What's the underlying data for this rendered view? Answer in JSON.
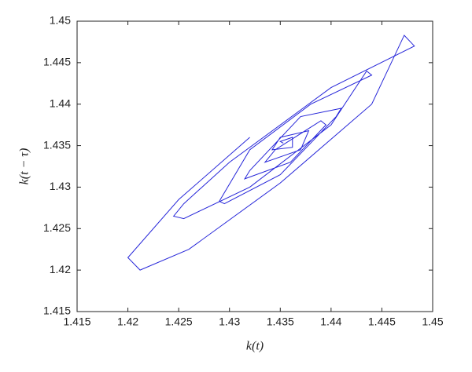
{
  "chart_data": {
    "type": "line",
    "x_label": "k(t)",
    "y_label": "k(t − τ)",
    "x": [
      1.432,
      1.425,
      1.42,
      1.4212,
      1.426,
      1.435,
      1.444,
      1.4472,
      1.4482,
      1.44,
      1.43,
      1.4255,
      1.4245,
      1.4255,
      1.432,
      1.44,
      1.4435,
      1.444,
      1.438,
      1.432,
      1.429,
      1.4295,
      1.435,
      1.4405,
      1.441,
      1.437,
      1.432,
      1.4315,
      1.436,
      1.4395,
      1.439,
      1.4345,
      1.4335,
      1.437,
      1.4378,
      1.435,
      1.4342,
      1.4362,
      1.4362,
      1.435,
      1.4353
    ],
    "series": [
      {
        "color": "#2626d9",
        "values": [
          1.436,
          1.4285,
          1.4215,
          1.42,
          1.4225,
          1.4305,
          1.44,
          1.4483,
          1.447,
          1.442,
          1.433,
          1.428,
          1.4265,
          1.4262,
          1.43,
          1.4375,
          1.444,
          1.4435,
          1.44,
          1.4345,
          1.4283,
          1.428,
          1.4315,
          1.4385,
          1.4395,
          1.4385,
          1.432,
          1.431,
          1.433,
          1.4375,
          1.438,
          1.4345,
          1.433,
          1.4345,
          1.4368,
          1.436,
          1.4345,
          1.4348,
          1.436,
          1.4355,
          1.4353
        ]
      }
    ],
    "xlim": [
      1.415,
      1.45
    ],
    "ylim": [
      1.415,
      1.45
    ],
    "xticks": [
      1.415,
      1.42,
      1.425,
      1.43,
      1.435,
      1.44,
      1.445,
      1.45
    ],
    "yticks": [
      1.415,
      1.42,
      1.425,
      1.43,
      1.435,
      1.44,
      1.445,
      1.45
    ]
  }
}
